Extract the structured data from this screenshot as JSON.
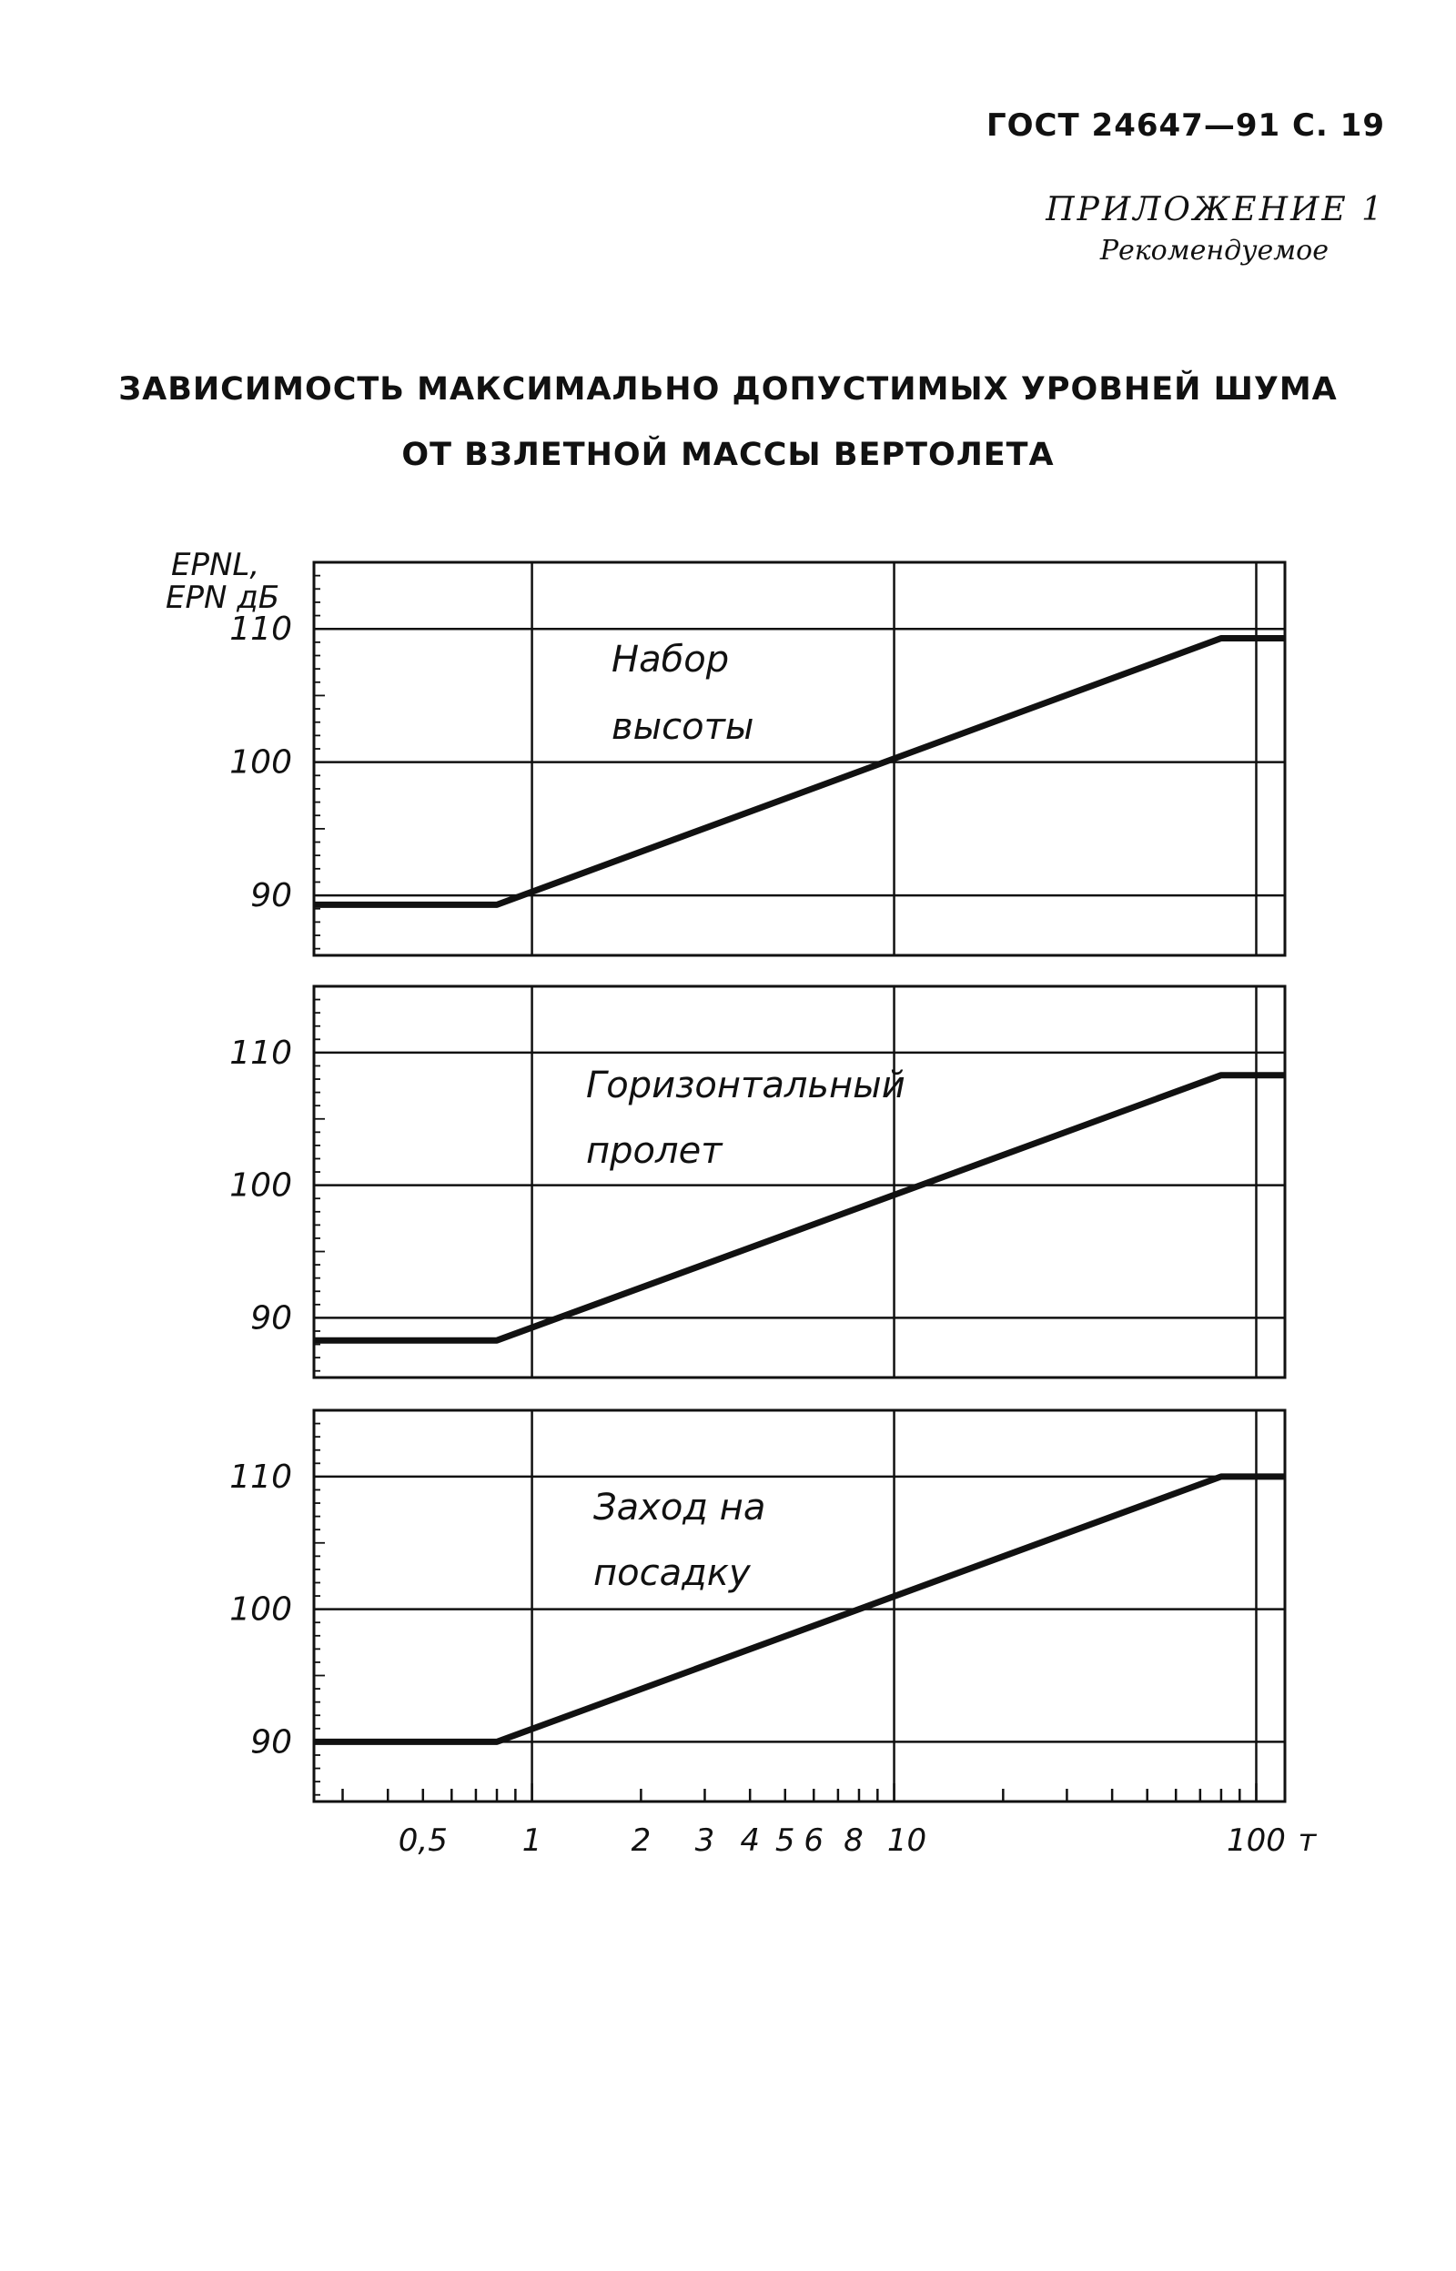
{
  "header": {
    "code": "ГОСТ 24647—91 С. 19",
    "appendix": "ПРИЛОЖЕНИЕ 1",
    "appendix_note": "Рекомендуемое"
  },
  "title": {
    "line1": "ЗАВИСИМОСТЬ МАКСИМАЛЬНО ДОПУСТИМЫХ УРОВНЕЙ ШУМА",
    "line2": "ОТ ВЗЛЕТНОЙ МАССЫ ВЕРТОЛЕТА"
  },
  "axis": {
    "ylabel_line1": "EPNL,",
    "ylabel_line2": "EPN дБ",
    "x_unit": "т"
  },
  "chart_data": [
    {
      "type": "line",
      "panel_label": [
        "Набор",
        "высоты"
      ],
      "x_scale": "log",
      "xlim": [
        0.25,
        120
      ],
      "ylim": [
        85.5,
        115
      ],
      "yticks": [
        90,
        100,
        110
      ],
      "xticks": [
        0.5,
        1,
        2,
        3,
        4,
        5,
        6,
        8,
        10,
        100
      ],
      "xtick_labels": [
        "0,5",
        "1",
        "2",
        "3",
        "4",
        "5",
        "6",
        "8",
        "10",
        "100"
      ],
      "grid": true,
      "series": [
        {
          "x": [
            0.25,
            0.8,
            80,
            120
          ],
          "y": [
            89.3,
            89.3,
            109.3,
            109.3
          ]
        }
      ]
    },
    {
      "type": "line",
      "panel_label": [
        "Горизонтальный",
        "пролет"
      ],
      "x_scale": "log",
      "xlim": [
        0.25,
        120
      ],
      "ylim": [
        85.5,
        115
      ],
      "yticks": [
        90,
        100,
        110
      ],
      "xticks": [
        0.5,
        1,
        2,
        3,
        4,
        5,
        6,
        8,
        10,
        100
      ],
      "xtick_labels": [
        "0,5",
        "1",
        "2",
        "3",
        "4",
        "5",
        "6",
        "8",
        "10",
        "100"
      ],
      "grid": true,
      "series": [
        {
          "x": [
            0.25,
            0.8,
            80,
            120
          ],
          "y": [
            88.3,
            88.3,
            108.3,
            108.3
          ]
        }
      ]
    },
    {
      "type": "line",
      "panel_label": [
        "Заход на",
        "посадку"
      ],
      "x_scale": "log",
      "xlim": [
        0.25,
        120
      ],
      "ylim": [
        85.5,
        115
      ],
      "yticks": [
        90,
        100,
        110
      ],
      "xticks": [
        0.5,
        1,
        2,
        3,
        4,
        5,
        6,
        8,
        10,
        100
      ],
      "xtick_labels": [
        "0,5",
        "1",
        "2",
        "3",
        "4",
        "5",
        "6",
        "8",
        "10",
        "100"
      ],
      "grid": true,
      "series": [
        {
          "x": [
            0.25,
            0.8,
            80,
            120
          ],
          "y": [
            90.0,
            90.0,
            110.0,
            110.0
          ]
        }
      ]
    }
  ]
}
